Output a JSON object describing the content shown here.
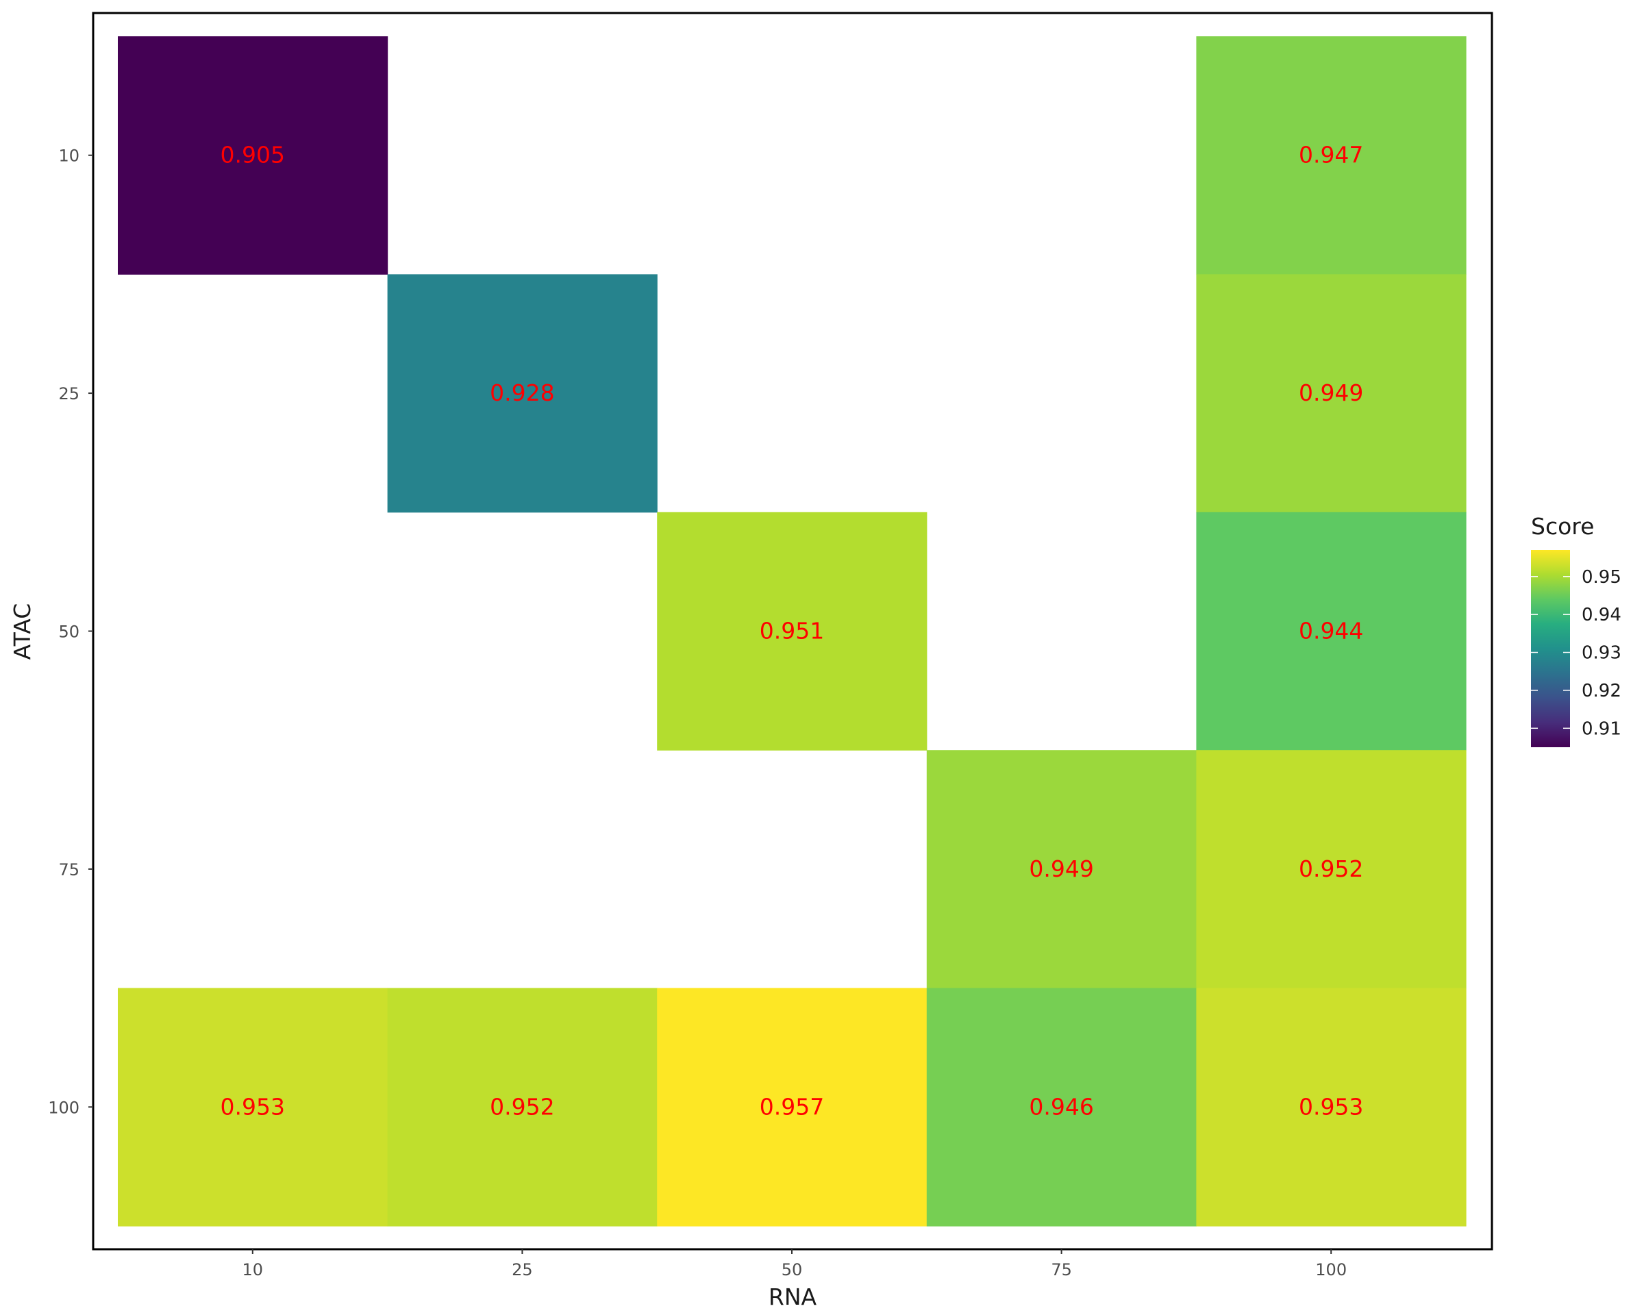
{
  "chart_data": {
    "type": "heatmap",
    "x_categories": [
      "10",
      "25",
      "50",
      "75",
      "100"
    ],
    "y_categories": [
      "10",
      "25",
      "50",
      "75",
      "100"
    ],
    "xlabel": "RNA",
    "ylabel": "ATAC",
    "cells": [
      {
        "x": "10",
        "y": "10",
        "value": 0.905,
        "label": "0.905"
      },
      {
        "x": "100",
        "y": "10",
        "value": 0.947,
        "label": "0.947"
      },
      {
        "x": "25",
        "y": "25",
        "value": 0.928,
        "label": "0.928"
      },
      {
        "x": "100",
        "y": "25",
        "value": 0.949,
        "label": "0.949"
      },
      {
        "x": "50",
        "y": "50",
        "value": 0.951,
        "label": "0.951"
      },
      {
        "x": "100",
        "y": "50",
        "value": 0.944,
        "label": "0.944"
      },
      {
        "x": "75",
        "y": "75",
        "value": 0.949,
        "label": "0.949"
      },
      {
        "x": "100",
        "y": "75",
        "value": 0.952,
        "label": "0.952"
      },
      {
        "x": "10",
        "y": "100",
        "value": 0.953,
        "label": "0.953"
      },
      {
        "x": "25",
        "y": "100",
        "value": 0.952,
        "label": "0.952"
      },
      {
        "x": "50",
        "y": "100",
        "value": 0.957,
        "label": "0.957"
      },
      {
        "x": "75",
        "y": "100",
        "value": 0.946,
        "label": "0.946"
      },
      {
        "x": "100",
        "y": "100",
        "value": 0.953,
        "label": "0.953"
      }
    ],
    "label_color": "#ff0000",
    "colorscale": "viridis",
    "legend": {
      "title": "Score",
      "placement": "right",
      "range": [
        0.905,
        0.957
      ],
      "ticks": [
        0.91,
        0.92,
        0.93,
        0.94,
        0.95
      ],
      "tick_labels": [
        "0.91",
        "0.92",
        "0.93",
        "0.94",
        "0.95"
      ]
    },
    "grid": false
  }
}
